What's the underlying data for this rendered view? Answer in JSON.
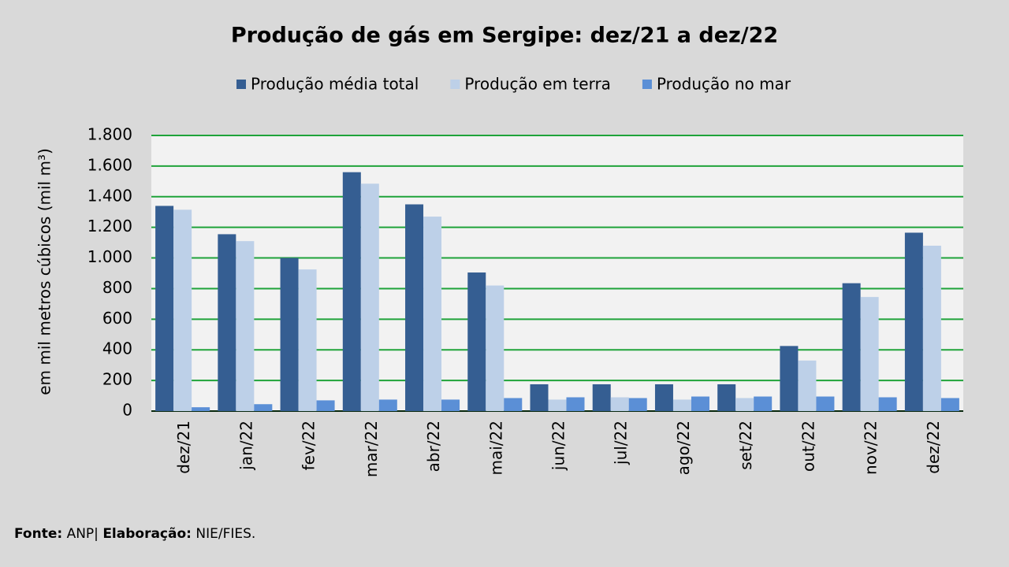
{
  "chart_data": {
    "type": "bar",
    "title": "Produção de gás em Sergipe: dez/21 a dez/22",
    "y_label": "em mil metros cúbicos (mil m³)",
    "categories": [
      "dez/21",
      "jan/22",
      "fev/22",
      "mar/22",
      "abr/22",
      "mai/22",
      "jun/22",
      "jul/22",
      "ago/22",
      "set/22",
      "out/22",
      "nov/22",
      "dez/22"
    ],
    "series": [
      {
        "name": "Produção média total",
        "color": "#355e92",
        "values": [
          1340,
          1155,
          1000,
          1560,
          1350,
          905,
          175,
          175,
          175,
          175,
          425,
          835,
          1165
        ]
      },
      {
        "name": "Produção em terra",
        "color": "#bdd0e8",
        "values": [
          1315,
          1110,
          925,
          1485,
          1270,
          820,
          75,
          90,
          75,
          85,
          330,
          745,
          1080
        ]
      },
      {
        "name": "Produção no mar",
        "color": "#5b8fd6",
        "values": [
          25,
          45,
          70,
          75,
          75,
          85,
          90,
          85,
          95,
          95,
          95,
          90,
          85
        ]
      }
    ],
    "ylim": [
      0,
      1800
    ],
    "yticks": [
      0,
      200,
      400,
      600,
      800,
      {
        "value": 1000,
        "label": "1.000"
      },
      {
        "value": 1200,
        "label": "1.200"
      },
      {
        "value": 1400,
        "label": "1.400"
      },
      {
        "value": 1600,
        "label": "1.600"
      },
      {
        "value": 1800,
        "label": "1.800"
      }
    ],
    "grid": true,
    "grid_color": "#1fa33a",
    "legend": "top"
  },
  "footer": {
    "source_label": "Fonte:",
    "source": "ANP|",
    "credit_label": "Elaboração:",
    "credit": "NIE/FIES."
  }
}
